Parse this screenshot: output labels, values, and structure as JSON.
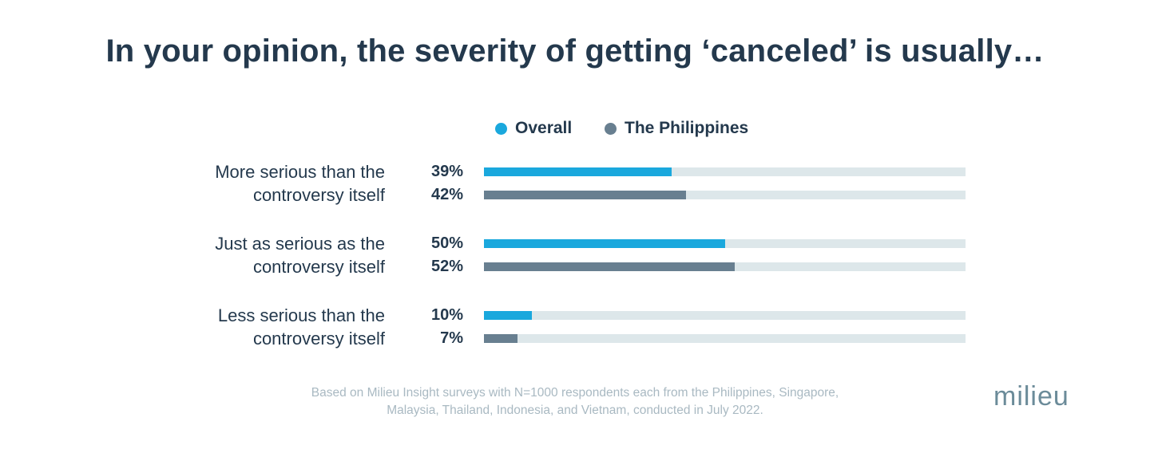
{
  "chart_data": {
    "type": "bar",
    "orientation": "horizontal",
    "title": "In your opinion, the severity of getting ‘canceled’ is usually…",
    "xlim": [
      0,
      100
    ],
    "grid": false,
    "legend_position": "top-center",
    "categories": [
      [
        "More serious than the",
        "controversy itself"
      ],
      [
        "Just as serious as the",
        "controversy itself"
      ],
      [
        "Less serious than the",
        "controversy itself"
      ]
    ],
    "series": [
      {
        "name": "Overall",
        "color": "#1aa8dd",
        "values": [
          39,
          50,
          10
        ],
        "labels": [
          "39%",
          "50%",
          "10%"
        ]
      },
      {
        "name": "The Philippines",
        "color": "#687f90",
        "values": [
          42,
          52,
          7
        ],
        "labels": [
          "42%",
          "52%",
          "7%"
        ]
      }
    ],
    "track_color": "#dde7ea"
  },
  "footnote": {
    "line1": "Based on Milieu Insight surveys with N=1000 respondents each from the Philippines, Singapore,",
    "line2": "Malaysia, Thailand, Indonesia, and Vietnam, conducted in July 2022."
  },
  "logo": {
    "text": "milieu"
  }
}
